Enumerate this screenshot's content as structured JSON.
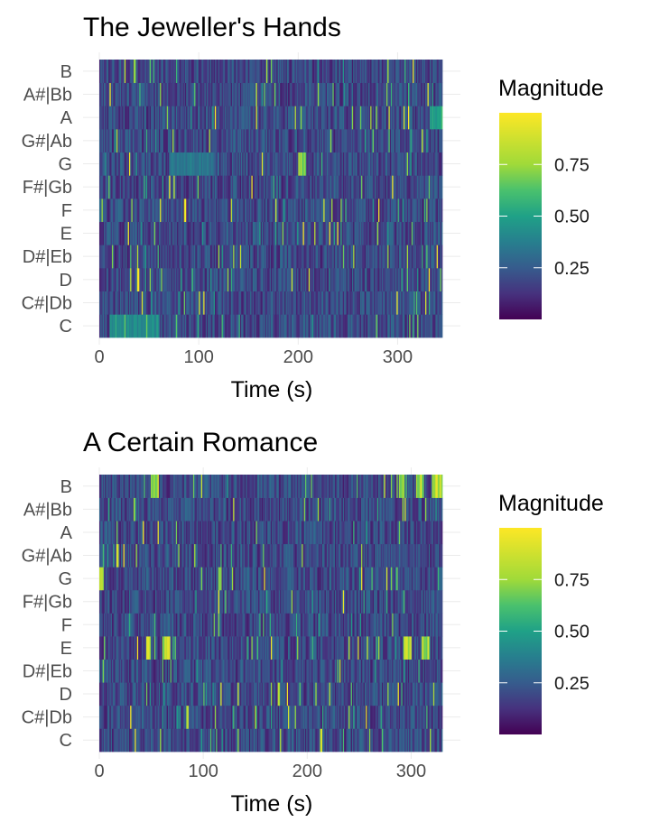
{
  "chart_data": [
    {
      "type": "heatmap",
      "title": "The Jeweller's Hands",
      "xlabel": "Time (s)",
      "ylabel": "",
      "x_ticks": [
        0,
        100,
        200,
        300
      ],
      "xlim": [
        0,
        345
      ],
      "y_categories": [
        "C",
        "C#|Db",
        "D",
        "D#|Eb",
        "E",
        "F",
        "F#|Gb",
        "G",
        "G#|Ab",
        "A",
        "A#|Bb",
        "B"
      ],
      "legend_title": "Magnitude",
      "legend_ticks": [
        0.25,
        0.5,
        0.75
      ],
      "legend_tick_labels": [
        "0.25",
        "0.50",
        "0.75"
      ],
      "legend_placement": "right",
      "colorscale": "viridis",
      "value_range": [
        0,
        1
      ],
      "grid": true,
      "n_frames": 300,
      "seed": 7,
      "hot_spans": [
        {
          "note": "G",
          "start": 200,
          "end": 208,
          "value": 0.98
        },
        {
          "note": "A",
          "start": 332,
          "end": 345,
          "value": 0.62
        },
        {
          "note": "C",
          "start": 10,
          "end": 60,
          "value": 0.55
        },
        {
          "note": "G",
          "start": 70,
          "end": 115,
          "value": 0.45
        }
      ]
    },
    {
      "type": "heatmap",
      "title": "A Certain Romance",
      "xlabel": "Time (s)",
      "ylabel": "",
      "x_ticks": [
        0,
        100,
        200,
        300
      ],
      "xlim": [
        0,
        330
      ],
      "y_categories": [
        "C",
        "C#|Db",
        "D",
        "D#|Eb",
        "E",
        "F",
        "F#|Gb",
        "G",
        "G#|Ab",
        "A",
        "A#|Bb",
        "B"
      ],
      "legend_title": "Magnitude",
      "legend_ticks": [
        0.25,
        0.5,
        0.75
      ],
      "legend_tick_labels": [
        "0.25",
        "0.50",
        "0.75"
      ],
      "legend_placement": "right",
      "colorscale": "viridis",
      "value_range": [
        0,
        1
      ],
      "grid": true,
      "n_frames": 300,
      "seed": 13,
      "hot_spans": [
        {
          "note": "B",
          "start": 50,
          "end": 57,
          "value": 0.98
        },
        {
          "note": "B",
          "start": 288,
          "end": 294,
          "value": 0.98
        },
        {
          "note": "B",
          "start": 306,
          "end": 312,
          "value": 0.98
        },
        {
          "note": "B",
          "start": 320,
          "end": 330,
          "value": 0.98
        },
        {
          "note": "E",
          "start": 45,
          "end": 50,
          "value": 0.98
        },
        {
          "note": "E",
          "start": 61,
          "end": 68,
          "value": 0.98
        },
        {
          "note": "E",
          "start": 293,
          "end": 300,
          "value": 0.98
        },
        {
          "note": "E",
          "start": 310,
          "end": 318,
          "value": 0.98
        },
        {
          "note": "G",
          "start": 0,
          "end": 4,
          "value": 0.98
        }
      ]
    }
  ]
}
